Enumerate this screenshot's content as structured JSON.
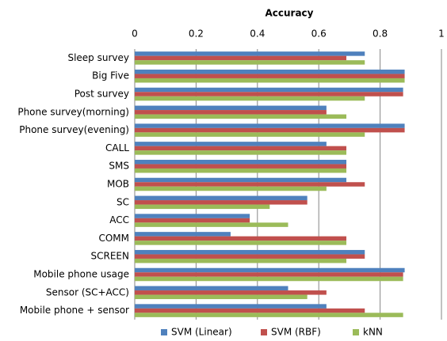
{
  "chart_data": {
    "type": "hbar",
    "title": "Accuracy",
    "categories": [
      "Sleep survey",
      "Big Five",
      "Post survey",
      "Phone survey(morning)",
      "Phone survey(evening)",
      "CALL",
      "SMS",
      "MOB",
      "SC",
      "ACC",
      "COMM",
      "SCREEN",
      "Mobile phone usage",
      "Sensor (SC+ACC)",
      "Mobile phone + sensor"
    ],
    "series": [
      {
        "name": "SVM (Linear)",
        "color": "#4f81bd",
        "values": [
          0.75,
          0.88,
          0.875,
          0.625,
          0.88,
          0.625,
          0.69,
          0.69,
          0.5625,
          0.375,
          0.3125,
          0.75,
          0.88,
          0.5,
          0.625
        ]
      },
      {
        "name": "SVM (RBF)",
        "color": "#c0504d",
        "values": [
          0.69,
          0.88,
          0.875,
          0.625,
          0.88,
          0.69,
          0.69,
          0.75,
          0.5625,
          0.375,
          0.69,
          0.75,
          0.875,
          0.625,
          0.75
        ]
      },
      {
        "name": "kNN",
        "color": "#9bbb59",
        "values": [
          0.75,
          0.88,
          0.75,
          0.69,
          0.75,
          0.69,
          0.69,
          0.625,
          0.44,
          0.5,
          0.69,
          0.69,
          0.875,
          0.5625,
          0.875
        ]
      }
    ],
    "xlim": [
      0,
      1
    ],
    "xticks": [
      0,
      0.2,
      0.4,
      0.6,
      0.8,
      1
    ],
    "grid": true,
    "legend": "bottom"
  }
}
